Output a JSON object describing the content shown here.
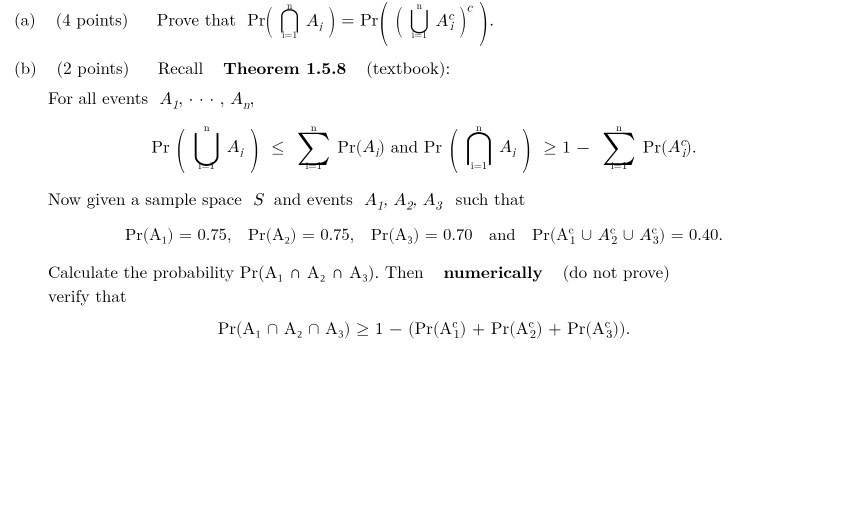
{
  "partA": {
    "label": "(a)",
    "points": "(4 points)",
    "proveThat": "Prove that",
    "Pr": "Pr",
    "intersect_top": "n",
    "intersect_bot": "i=1",
    "intersect_sym": "⋂",
    "union_sym": "⋃",
    "Ai": "A",
    "Ai_sub": "i",
    "Ac_sup": "c",
    "eq": "="
  },
  "partB": {
    "label": "(b)",
    "points": "(2 points)",
    "recall": "Recall",
    "theorem": "Theorem 1.5.8",
    "textbook": "(textbook):",
    "forAll": "For all events",
    "A1": "A",
    "A1_sub": "1",
    "An": "A",
    "An_sub": "n",
    "dots": ", · · · ,",
    "comma": ",",
    "Pr": "Pr",
    "union_sym": "⋃",
    "intersect_sym": "⋂",
    "sum_sym": "∑",
    "lim_top": "n",
    "lim_bot": "i=1",
    "Ai": "A",
    "Ai_sub": "i",
    "Ac_sup": "c",
    "le": "≤",
    "ge": "≥",
    "and": " and ",
    "one_minus": "1 −",
    "period": ".",
    "nowGiven": "Now given a sample space",
    "S": "S",
    "andEvents": "and events",
    "A2_sub": "2",
    "A3_sub": "3",
    "suchThat": "such that",
    "p1": "Pr(A₁) = 0.75,",
    "p2": "Pr(A₂) = 0.75,",
    "p3": "Pr(A₃) = 0.70",
    "andText": "and",
    "p4pre": "Pr(A",
    "cup": " ∪ ",
    "p4val": ") = 0.40.",
    "calc": "Calculate the probability Pr(A₁ ∩ A₂ ∩ A₃).  Then",
    "numerically": "numerically",
    "doNotProve": "(do not prove)",
    "verify": "verify that",
    "finalLHS": "Pr(A₁ ∩ A₂ ∩ A₃) ≥ 1 − (Pr(A",
    "plus": ") + Pr(A",
    "finalEnd": "))."
  }
}
